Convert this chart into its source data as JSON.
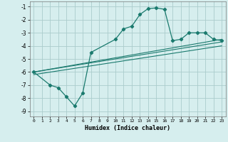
{
  "xlabel": "Humidex (Indice chaleur)",
  "ylabel": "",
  "bg_color": "#d6eeee",
  "grid_color": "#aacccc",
  "line_color": "#1a7a6e",
  "xlim": [
    -0.5,
    23.5
  ],
  "ylim": [
    -9.4,
    -0.6
  ],
  "yticks": [
    -9,
    -8,
    -7,
    -6,
    -5,
    -4,
    -3,
    -2,
    -1
  ],
  "xticks": [
    0,
    1,
    2,
    3,
    4,
    5,
    6,
    7,
    8,
    9,
    10,
    11,
    12,
    13,
    14,
    15,
    16,
    17,
    18,
    19,
    20,
    21,
    22,
    23
  ],
  "main_x": [
    0,
    2,
    3,
    4,
    5,
    6,
    7,
    10,
    11,
    12,
    13,
    14,
    15,
    16,
    17,
    18,
    19,
    20,
    21,
    22,
    23
  ],
  "main_y": [
    -6.0,
    -7.0,
    -7.2,
    -7.9,
    -8.6,
    -7.6,
    -4.5,
    -3.5,
    -2.7,
    -2.5,
    -1.6,
    -1.15,
    -1.1,
    -1.2,
    -3.6,
    -3.5,
    -3.0,
    -3.0,
    -3.0,
    -3.5,
    -3.6
  ],
  "line1_x": [
    0,
    23
  ],
  "line1_y": [
    -6.0,
    -3.5
  ],
  "line2_x": [
    0,
    23
  ],
  "line2_y": [
    -6.0,
    -3.7
  ],
  "line3_x": [
    0,
    23
  ],
  "line3_y": [
    -6.2,
    -4.0
  ]
}
